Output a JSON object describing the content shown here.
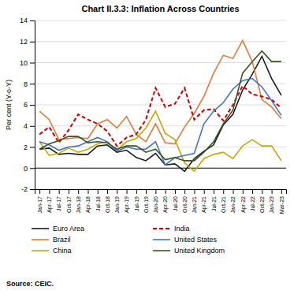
{
  "chart_data": {
    "type": "line",
    "title": "Chart II.3.3: Inflation Across Countries",
    "ylabel": "Per cent (Y-o-Y)",
    "annotations": [
      "Source: CEIC."
    ],
    "categories": [
      "Jan-17",
      "Apr-17",
      "Jul-17",
      "Oct-17",
      "Jan-18",
      "Apr-18",
      "Jul-18",
      "Oct-18",
      "Jan-19",
      "Apr-19",
      "Jul-19",
      "Oct-19",
      "Jan-20",
      "Apr-20",
      "Jul-20",
      "Oct-20",
      "Jan-21",
      "Apr-21",
      "Jul-21",
      "Oct-21",
      "Jan-22",
      "Apr-22",
      "Jul-22",
      "Oct-22",
      "Jan-23",
      "Mar-23"
    ],
    "series": [
      {
        "name": "Euro Area",
        "color": "#1a1a1a",
        "line_style": "solid",
        "values": [
          1.8,
          1.9,
          1.3,
          1.4,
          1.3,
          1.3,
          2.1,
          2.2,
          1.5,
          1.7,
          1.0,
          0.7,
          1.4,
          0.3,
          0.4,
          -0.3,
          0.9,
          1.6,
          2.2,
          4.1,
          5.1,
          7.4,
          8.9,
          10.6,
          8.5,
          6.9
        ]
      },
      {
        "name": "Brazil",
        "color": "#e07b39",
        "line_style": "solid",
        "values": [
          5.4,
          4.6,
          2.7,
          2.8,
          2.9,
          2.8,
          4.2,
          4.6,
          3.8,
          4.9,
          3.2,
          2.5,
          4.2,
          2.4,
          2.3,
          3.9,
          5.2,
          6.8,
          9.0,
          10.7,
          10.4,
          12.1,
          10.1,
          6.5,
          5.8,
          4.7
        ]
      },
      {
        "name": "China",
        "color": "#c8a800",
        "line_style": "solid",
        "values": [
          2.5,
          1.2,
          1.4,
          1.9,
          1.5,
          1.8,
          2.3,
          2.5,
          1.7,
          2.5,
          2.8,
          3.8,
          5.4,
          3.3,
          2.7,
          0.5,
          -0.3,
          0.9,
          1.3,
          1.5,
          0.9,
          2.1,
          2.7,
          2.1,
          2.1,
          0.7
        ]
      },
      {
        "name": "India",
        "color": "#cc0000",
        "line_style": "dashed",
        "values": [
          3.2,
          3.9,
          2.4,
          3.6,
          5.1,
          4.6,
          4.2,
          3.5,
          2.1,
          2.9,
          3.2,
          4.6,
          7.6,
          5.8,
          6.1,
          7.6,
          4.6,
          5.5,
          5.6,
          4.5,
          6.0,
          7.8,
          7.0,
          6.8,
          6.5,
          5.7
        ]
      },
      {
        "name": "United States",
        "color": "#4472c4",
        "line_style": "solid",
        "values": [
          2.5,
          2.2,
          1.7,
          2.0,
          2.1,
          2.5,
          2.9,
          2.5,
          1.6,
          2.0,
          1.8,
          1.8,
          2.5,
          0.3,
          1.0,
          1.2,
          1.4,
          4.2,
          5.4,
          6.2,
          7.5,
          8.3,
          8.5,
          7.7,
          6.4,
          5.0
        ]
      },
      {
        "name": "United Kingdom",
        "color": "#375623",
        "line_style": "solid",
        "values": [
          1.8,
          2.3,
          2.6,
          3.0,
          3.0,
          2.4,
          2.5,
          2.4,
          1.8,
          2.1,
          2.1,
          1.5,
          1.8,
          0.8,
          1.0,
          0.7,
          0.7,
          1.5,
          2.5,
          4.2,
          5.5,
          9.0,
          10.1,
          11.1,
          10.1,
          10.1
        ]
      }
    ],
    "ylim": [
      -2,
      14
    ],
    "yticks": [
      -2,
      0,
      2,
      4,
      6,
      8,
      10,
      12,
      14
    ],
    "grid": true,
    "legend": "bottom"
  }
}
